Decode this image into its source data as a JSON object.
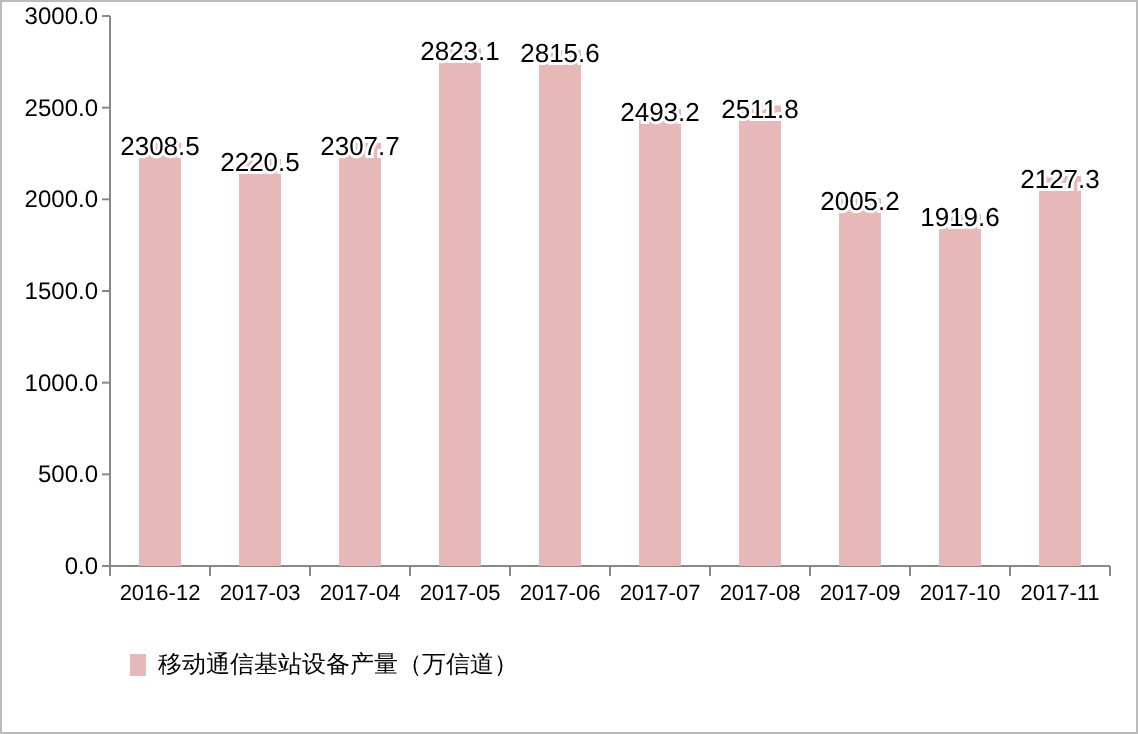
{
  "chart_data": {
    "type": "bar",
    "categories": [
      "2016-12",
      "2017-03",
      "2017-04",
      "2017-05",
      "2017-06",
      "2017-07",
      "2017-08",
      "2017-09",
      "2017-10",
      "2017-11"
    ],
    "series": [
      {
        "name": "移动通信基站设备产量（万信道）",
        "color": "#e6b9b8",
        "values": [
          2308.5,
          2220.5,
          2307.7,
          2823.1,
          2815.6,
          2493.2,
          2511.8,
          2005.2,
          1919.6,
          2127.3
        ]
      }
    ],
    "ylim": [
      0,
      3000
    ],
    "yticks": [
      {
        "value": 0,
        "label": "0.0"
      },
      {
        "value": 500,
        "label": "500.0"
      },
      {
        "value": 1000,
        "label": "1000.0"
      },
      {
        "value": 1500,
        "label": "1500.0"
      },
      {
        "value": 2000,
        "label": "2000.0"
      },
      {
        "value": 2500,
        "label": "2500.0"
      },
      {
        "value": 3000,
        "label": "3000.0"
      }
    ],
    "data_labels": true,
    "grid": false,
    "legend": "bottom left"
  }
}
